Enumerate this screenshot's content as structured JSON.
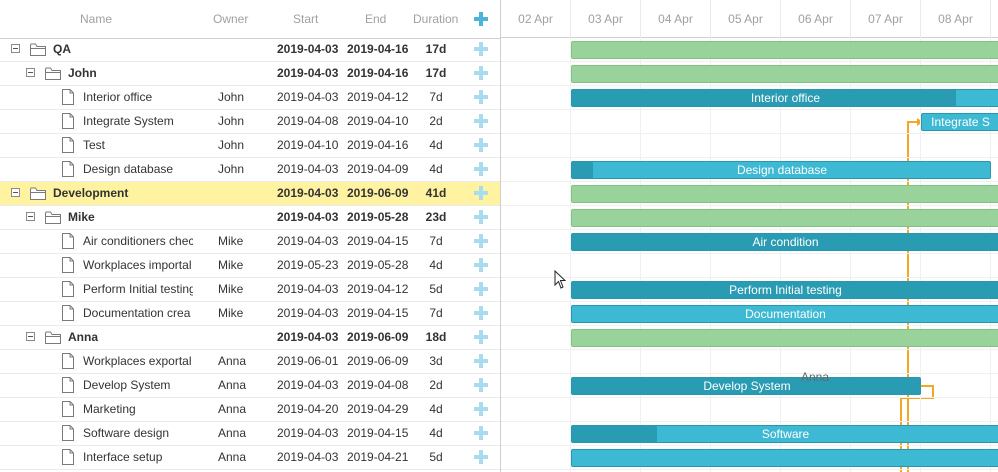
{
  "columns": {
    "name": "Name",
    "owner": "Owner",
    "start": "Start",
    "end": "End",
    "duration": "Duration"
  },
  "scale": [
    "02 Apr",
    "03 Apr",
    "04 Apr",
    "05 Apr",
    "06 Apr",
    "07 Apr",
    "08 Apr"
  ],
  "rows": [
    {
      "name": "QA",
      "owner": "",
      "start": "2019-04-03",
      "end": "2019-04-16",
      "duration": "17d",
      "level": 0,
      "type": "project",
      "selected": false
    },
    {
      "name": "John",
      "owner": "",
      "start": "2019-04-03",
      "end": "2019-04-16",
      "duration": "17d",
      "level": 1,
      "type": "project",
      "selected": false
    },
    {
      "name": "Interior office",
      "owner": "John",
      "start": "2019-04-03",
      "end": "2019-04-12",
      "duration": "7d",
      "level": 2,
      "type": "task",
      "selected": false
    },
    {
      "name": "Integrate System",
      "owner": "John",
      "start": "2019-04-08",
      "end": "2019-04-10",
      "duration": "2d",
      "level": 2,
      "type": "task",
      "selected": false
    },
    {
      "name": "Test",
      "owner": "John",
      "start": "2019-04-10",
      "end": "2019-04-16",
      "duration": "4d",
      "level": 2,
      "type": "task",
      "selected": false
    },
    {
      "name": "Design database",
      "owner": "John",
      "start": "2019-04-03",
      "end": "2019-04-09",
      "duration": "4d",
      "level": 2,
      "type": "task",
      "selected": false
    },
    {
      "name": "Development",
      "owner": "",
      "start": "2019-04-03",
      "end": "2019-06-09",
      "duration": "41d",
      "level": 0,
      "type": "project",
      "selected": true
    },
    {
      "name": "Mike",
      "owner": "",
      "start": "2019-04-03",
      "end": "2019-05-28",
      "duration": "23d",
      "level": 1,
      "type": "project",
      "selected": false
    },
    {
      "name": "Air conditioners chec",
      "owner": "Mike",
      "start": "2019-04-03",
      "end": "2019-04-15",
      "duration": "7d",
      "level": 2,
      "type": "task",
      "selected": false
    },
    {
      "name": "Workplaces importal",
      "owner": "Mike",
      "start": "2019-05-23",
      "end": "2019-05-28",
      "duration": "4d",
      "level": 2,
      "type": "task",
      "selected": false
    },
    {
      "name": "Perform Initial testing",
      "owner": "Mike",
      "start": "2019-04-03",
      "end": "2019-04-12",
      "duration": "5d",
      "level": 2,
      "type": "task",
      "selected": false
    },
    {
      "name": "Documentation crea",
      "owner": "Mike",
      "start": "2019-04-03",
      "end": "2019-04-15",
      "duration": "7d",
      "level": 2,
      "type": "task",
      "selected": false
    },
    {
      "name": "Anna",
      "owner": "",
      "start": "2019-04-03",
      "end": "2019-06-09",
      "duration": "18d",
      "level": 1,
      "type": "project",
      "selected": false
    },
    {
      "name": "Workplaces exportal",
      "owner": "Anna",
      "start": "2019-06-01",
      "end": "2019-06-09",
      "duration": "3d",
      "level": 2,
      "type": "task",
      "selected": false
    },
    {
      "name": "Develop System",
      "owner": "Anna",
      "start": "2019-04-03",
      "end": "2019-04-08",
      "duration": "2d",
      "level": 2,
      "type": "task",
      "selected": false
    },
    {
      "name": "Marketing",
      "owner": "Anna",
      "start": "2019-04-20",
      "end": "2019-04-29",
      "duration": "4d",
      "level": 2,
      "type": "task",
      "selected": false
    },
    {
      "name": "Software design",
      "owner": "Anna",
      "start": "2019-04-03",
      "end": "2019-04-15",
      "duration": "4d",
      "level": 2,
      "type": "task",
      "selected": false
    },
    {
      "name": "Interface setup",
      "owner": "Anna",
      "start": "2019-04-03",
      "end": "2019-04-21",
      "duration": "5d",
      "level": 2,
      "type": "task",
      "selected": false
    }
  ],
  "bars": [
    {
      "row": 0,
      "type": "project",
      "start": "2019-04-03",
      "end": "2019-04-16",
      "label": "",
      "progress": 0
    },
    {
      "row": 1,
      "type": "project",
      "start": "2019-04-03",
      "end": "2019-04-16",
      "label": "",
      "progress": 0
    },
    {
      "row": 2,
      "type": "task",
      "start": "2019-04-03",
      "end": "2019-04-12",
      "label": "Interior office",
      "progress": 0.9
    },
    {
      "row": 3,
      "type": "task",
      "start": "2019-04-08",
      "end": "2019-04-10",
      "label": "Integrate S",
      "progress": 0
    },
    {
      "row": 5,
      "type": "task",
      "start": "2019-04-03",
      "end": "2019-04-09",
      "label": "Design database",
      "progress": 0.05
    },
    {
      "row": 6,
      "type": "project",
      "start": "2019-04-03",
      "end": "2019-06-09",
      "label": "",
      "progress": 0
    },
    {
      "row": 7,
      "type": "project",
      "start": "2019-04-03",
      "end": "2019-05-28",
      "label": "",
      "progress": 0
    },
    {
      "row": 8,
      "type": "task",
      "start": "2019-04-03",
      "end": "2019-04-15",
      "label": "Air condition",
      "progress": 1
    },
    {
      "row": 10,
      "type": "task",
      "start": "2019-04-03",
      "end": "2019-04-12",
      "label": "Perform Initial testing",
      "progress": 1
    },
    {
      "row": 11,
      "type": "task",
      "start": "2019-04-03",
      "end": "2019-04-15",
      "label": "Documentation",
      "progress": 0
    },
    {
      "row": 12,
      "type": "project",
      "start": "2019-04-03",
      "end": "2019-06-09",
      "label": "",
      "progress": 0
    },
    {
      "row": 14,
      "type": "task",
      "start": "2019-04-03",
      "end": "2019-04-08",
      "label": "Develop System",
      "progress": 1
    },
    {
      "row": 16,
      "type": "task",
      "start": "2019-04-03",
      "end": "2019-04-15",
      "label": "Software",
      "progress": 0.2
    },
    {
      "row": 17,
      "type": "task",
      "start": "2019-04-03",
      "end": "2019-04-21",
      "label": "",
      "progress": 0
    }
  ],
  "side_labels": [
    {
      "row": 14,
      "text": "Anna"
    }
  ],
  "colors": {
    "task": "#3db9d3",
    "task_progress": "#299cb4",
    "project": "#9ad29c",
    "selected_row": "#fff3a1",
    "link": "#f5a623",
    "add_icon": "#a8dcee"
  }
}
